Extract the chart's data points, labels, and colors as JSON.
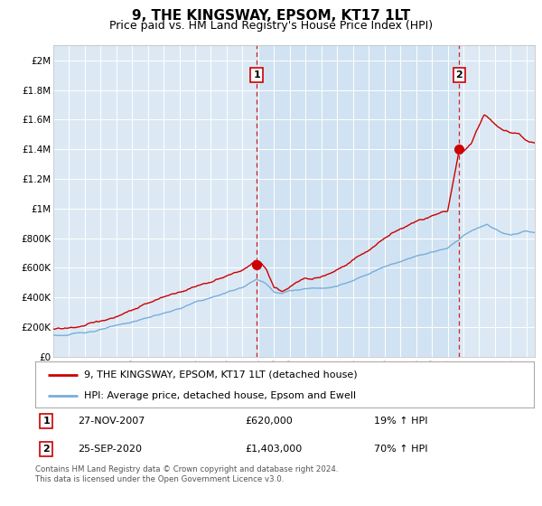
{
  "title": "9, THE KINGSWAY, EPSOM, KT17 1LT",
  "subtitle": "Price paid vs. HM Land Registry's House Price Index (HPI)",
  "legend_label_red": "9, THE KINGSWAY, EPSOM, KT17 1LT (detached house)",
  "legend_label_blue": "HPI: Average price, detached house, Epsom and Ewell",
  "annotation1_label": "1",
  "annotation1_date": "27-NOV-2007",
  "annotation1_price": "£620,000",
  "annotation1_hpi": "19% ↑ HPI",
  "annotation1_year": 2007.9,
  "annotation1_value": 620000,
  "annotation2_label": "2",
  "annotation2_date": "25-SEP-2020",
  "annotation2_price": "£1,403,000",
  "annotation2_hpi": "70% ↑ HPI",
  "annotation2_year": 2020.73,
  "annotation2_value": 1403000,
  "ylabel_ticks": [
    0,
    200000,
    400000,
    600000,
    800000,
    1000000,
    1200000,
    1400000,
    1600000,
    1800000,
    2000000
  ],
  "ylabel_labels": [
    "£0",
    "£200K",
    "£400K",
    "£600K",
    "£800K",
    "£1M",
    "£1.2M",
    "£1.4M",
    "£1.6M",
    "£1.8M",
    "£2M"
  ],
  "ylim": [
    0,
    2100000
  ],
  "xlim_start": 1995,
  "xlim_end": 2025.5,
  "background_color": "#dce9f5",
  "red_color": "#cc0000",
  "blue_color": "#7aadda",
  "grid_color": "#ffffff",
  "footer": "Contains HM Land Registry data © Crown copyright and database right 2024.\nThis data is licensed under the Open Government Licence v3.0.",
  "table_row1": [
    "1",
    "27-NOV-2007",
    "£620,000",
    "19% ↑ HPI"
  ],
  "table_row2": [
    "2",
    "25-SEP-2020",
    "£1,403,000",
    "70% ↑ HPI"
  ]
}
